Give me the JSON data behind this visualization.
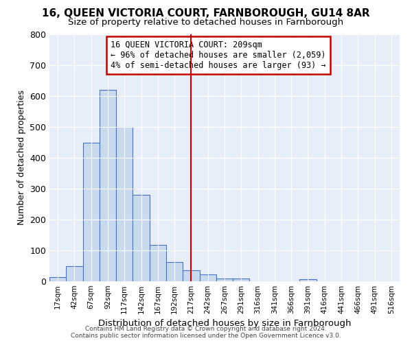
{
  "title": "16, QUEEN VICTORIA COURT, FARNBOROUGH, GU14 8AR",
  "subtitle": "Size of property relative to detached houses in Farnborough",
  "xlabel": "Distribution of detached houses by size in Farnborough",
  "ylabel": "Number of detached properties",
  "bar_labels": [
    "17sqm",
    "42sqm",
    "67sqm",
    "92sqm",
    "117sqm",
    "142sqm",
    "167sqm",
    "192sqm",
    "217sqm",
    "242sqm",
    "267sqm",
    "291sqm",
    "316sqm",
    "341sqm",
    "366sqm",
    "391sqm",
    "416sqm",
    "441sqm",
    "466sqm",
    "491sqm",
    "516sqm"
  ],
  "bar_values": [
    13,
    50,
    450,
    620,
    500,
    280,
    117,
    62,
    35,
    22,
    10,
    8,
    0,
    0,
    0,
    7,
    0,
    0,
    0,
    0,
    0
  ],
  "bar_color": "#c9d9ee",
  "bar_edge_color": "#4472c4",
  "vline_x": 8,
  "vline_color": "#c00000",
  "annotation_text": "16 QUEEN VICTORIA COURT: 209sqm\n← 96% of detached houses are smaller (2,059)\n4% of semi-detached houses are larger (93) →",
  "annotation_box_color": "#c00000",
  "ylim": [
    0,
    800
  ],
  "yticks": [
    0,
    100,
    200,
    300,
    400,
    500,
    600,
    700,
    800
  ],
  "footer_line1": "Contains HM Land Registry data © Crown copyright and database right 2024.",
  "footer_line2": "Contains public sector information licensed under the Open Government Licence v3.0.",
  "bg_color": "#e8eef8",
  "fig_bg_color": "#ffffff",
  "title_fontsize": 11,
  "subtitle_fontsize": 9.5,
  "annotation_fontsize": 8.5,
  "ylabel_fontsize": 9,
  "xlabel_fontsize": 9.5
}
